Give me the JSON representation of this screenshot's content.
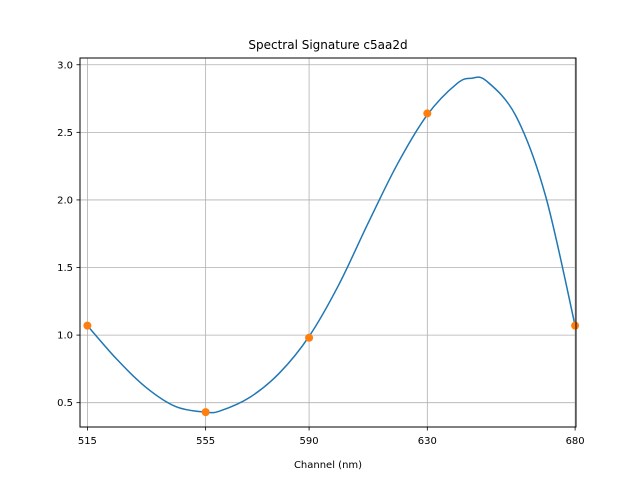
{
  "chart_data": {
    "type": "line",
    "title": "Spectral Signature c5aa2d",
    "xlabel": "Channel (nm)",
    "ylabel": "",
    "xlim": [
      512.5,
      680.3
    ],
    "ylim": [
      0.32,
      3.05
    ],
    "x_ticks": [
      515,
      555,
      590,
      630,
      680
    ],
    "x_tick_labels": [
      "515",
      "555",
      "590",
      "630",
      "680"
    ],
    "y_ticks": [
      0.5,
      1.0,
      1.5,
      2.0,
      2.5,
      3.0
    ],
    "y_tick_labels": [
      "0.5",
      "1.0",
      "1.5",
      "2.0",
      "2.5",
      "3.0"
    ],
    "grid": true,
    "series": [
      {
        "role": "curve",
        "color": "#1f77b4",
        "x": [
          515,
          525,
          535,
          545,
          555,
          560,
          570,
          580,
          590,
          600,
          610,
          620,
          630,
          640,
          645,
          650,
          660,
          670,
          680
        ],
        "y": [
          1.07,
          0.82,
          0.61,
          0.47,
          0.43,
          0.44,
          0.54,
          0.72,
          0.99,
          1.37,
          1.83,
          2.27,
          2.63,
          2.86,
          2.9,
          2.88,
          2.62,
          2.03,
          1.07
        ]
      },
      {
        "role": "points",
        "color": "#ff7f0e",
        "x": [
          515,
          555,
          590,
          630,
          680
        ],
        "y": [
          1.07,
          0.43,
          0.98,
          2.64,
          1.07
        ]
      }
    ]
  }
}
